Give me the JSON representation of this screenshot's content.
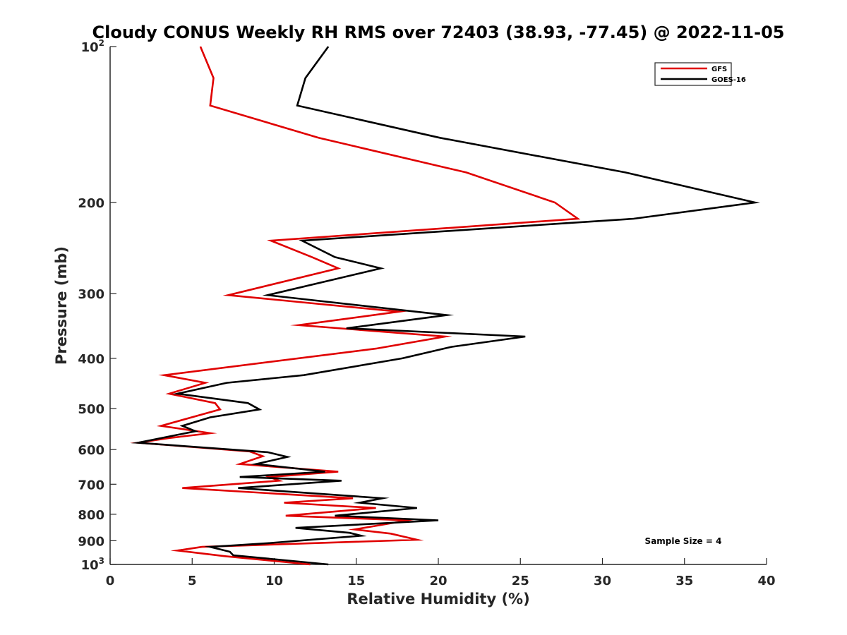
{
  "chart_data": {
    "type": "line",
    "title": "Cloudy CONUS Weekly RH RMS over 72403 (38.93, -77.45) @ 2022-11-05",
    "xlabel": "Relative Humidity (%)",
    "ylabel": "Pressure (mb)",
    "xlim": [
      0,
      40
    ],
    "ylim": [
      100,
      1000
    ],
    "y_scale": "log",
    "y_reversed": true,
    "grid": false,
    "legend_position": "top-right",
    "x_ticks": [
      0,
      5,
      10,
      15,
      20,
      25,
      30,
      35,
      40
    ],
    "y_ticks": [
      {
        "value": 100,
        "base": "10",
        "exp": "2"
      },
      {
        "value": 200,
        "text": "200"
      },
      {
        "value": 300,
        "text": "300"
      },
      {
        "value": 400,
        "text": "400"
      },
      {
        "value": 500,
        "text": "500"
      },
      {
        "value": 600,
        "text": "600"
      },
      {
        "value": 700,
        "text": "700"
      },
      {
        "value": 800,
        "text": "800"
      },
      {
        "value": 900,
        "text": "900"
      },
      {
        "value": 1000,
        "base": "10",
        "exp": "3"
      }
    ],
    "annotation": "Sample Size = 4",
    "series": [
      {
        "name": "GFS",
        "color": "#e00000",
        "points": [
          [
            5.5,
            100
          ],
          [
            6.3,
            115
          ],
          [
            6.1,
            130
          ],
          [
            12.7,
            150
          ],
          [
            21.7,
            175
          ],
          [
            27.1,
            200
          ],
          [
            28.5,
            215
          ],
          [
            9.8,
            237
          ],
          [
            12.3,
            255
          ],
          [
            13.9,
            268
          ],
          [
            7.2,
            302
          ],
          [
            17.6,
            325
          ],
          [
            11.5,
            345
          ],
          [
            20.4,
            363
          ],
          [
            16.2,
            383
          ],
          [
            3.3,
            431
          ],
          [
            5.8,
            446
          ],
          [
            3.6,
            468
          ],
          [
            6.4,
            488
          ],
          [
            6.7,
            502
          ],
          [
            3.1,
            540
          ],
          [
            6.1,
            558
          ],
          [
            3.6,
            570
          ],
          [
            1.7,
            582
          ],
          [
            8.5,
            605
          ],
          [
            9.3,
            618
          ],
          [
            7.9,
            640
          ],
          [
            13.9,
            662
          ],
          [
            9.7,
            678
          ],
          [
            10.3,
            689
          ],
          [
            4.4,
            712
          ],
          [
            14.8,
            745
          ],
          [
            10.6,
            760
          ],
          [
            16.2,
            778
          ],
          [
            10.7,
            805
          ],
          [
            18.1,
            822
          ],
          [
            16.8,
            836
          ],
          [
            14.9,
            856
          ],
          [
            17.1,
            872
          ],
          [
            18.7,
            896
          ],
          [
            5.6,
            925
          ],
          [
            4.1,
            940
          ],
          [
            7.0,
            964
          ],
          [
            12.2,
            1000
          ]
        ]
      },
      {
        "name": "GOES-16",
        "color": "#000000",
        "points": [
          [
            13.3,
            100
          ],
          [
            11.9,
            115
          ],
          [
            11.4,
            130
          ],
          [
            20.1,
            150
          ],
          [
            31.4,
            175
          ],
          [
            39.3,
            200
          ],
          [
            31.9,
            215
          ],
          [
            11.7,
            237
          ],
          [
            13.7,
            255
          ],
          [
            16.5,
            268
          ],
          [
            9.6,
            302
          ],
          [
            20.5,
            330
          ],
          [
            14.4,
            350
          ],
          [
            25.3,
            363
          ],
          [
            20.8,
            380
          ],
          [
            17.8,
            400
          ],
          [
            11.8,
            431
          ],
          [
            7.1,
            446
          ],
          [
            4.1,
            468
          ],
          [
            8.4,
            488
          ],
          [
            9.1,
            502
          ],
          [
            6.1,
            520
          ],
          [
            4.4,
            540
          ],
          [
            5.2,
            553
          ],
          [
            1.7,
            582
          ],
          [
            9.6,
            607
          ],
          [
            10.8,
            620
          ],
          [
            8.9,
            640
          ],
          [
            13.1,
            662
          ],
          [
            7.9,
            678
          ],
          [
            14.1,
            689
          ],
          [
            7.8,
            712
          ],
          [
            16.6,
            745
          ],
          [
            15.2,
            760
          ],
          [
            18.7,
            778
          ],
          [
            13.7,
            805
          ],
          [
            20.0,
            822
          ],
          [
            11.3,
            850
          ],
          [
            14.6,
            869
          ],
          [
            15.3,
            880
          ],
          [
            9.6,
            910
          ],
          [
            6.1,
            925
          ],
          [
            7.3,
            945
          ],
          [
            7.5,
            960
          ],
          [
            13.3,
            1000
          ]
        ]
      }
    ]
  }
}
